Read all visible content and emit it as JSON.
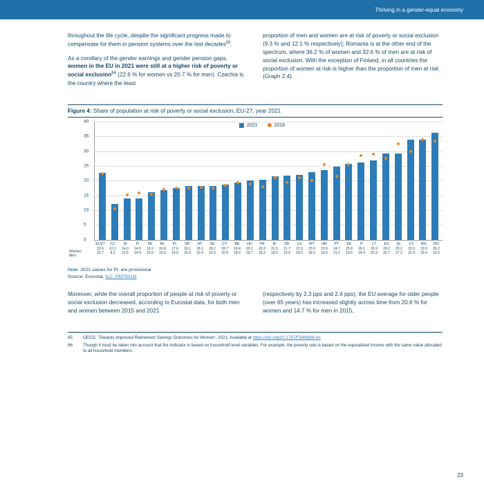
{
  "header": {
    "title": "Thriving in a gender-equal economy"
  },
  "text": {
    "p1": "throughout the life cycle, despite the significant progress made to compensate for them in pension systems over the last decades",
    "sup1": "65",
    "p1end": ".",
    "p2a": "As a corollary of the gender earnings and gender pension gaps, ",
    "p2b": "women in the EU in 2021 were still at a higher risk of poverty or social exclusion",
    "sup2": "66",
    "p2c": " (22.6 % for women vs 20.7 % for men). Czechia is the country where the least",
    "p3": "proportion of men and women are at risk of poverty or social exclusion (9.3 % and 12.1 % respectively); Romania is at the other end of the spectrum, where 36.2 % of women and 32.6 % of men are at risk of social exclusion. With the exception of Finland, in all countries the proportion of women at risk is higher than the proportion of men at risk (Graph 2.4).",
    "p4": "Moreover, while the overall proportion of people at risk of poverty or social exclusion decreased, according to Eurostat data, for both men and women between 2015 and 2021",
    "p5": "(respectively by 2.3 pps and 2.4 pps), the EU average for older people (over 65 years) has increased slightly across time from 20.6 % for women and 14.7 % for men in 2015,"
  },
  "figure": {
    "label": "Figure 4:",
    "caption": "Share of population at risk of poverty or social exclusion, EU-27, year 2021",
    "legend": {
      "a": "2021",
      "b": "2018"
    },
    "ylim": [
      0,
      40
    ],
    "yticks": [
      0,
      5,
      10,
      15,
      20,
      25,
      30,
      35,
      40
    ],
    "bar_color": "#2d7cb8",
    "dot_color": "#e58a2e",
    "row_headers": [
      "Women:",
      "Men:"
    ],
    "countries": [
      {
        "cc": "EU27",
        "w": "22.6",
        "m": "20.7",
        "bar": 22.6,
        "dot": 22.0
      },
      {
        "cc": "CZ",
        "w": "12.1",
        "m": "9.3",
        "bar": 12.1,
        "dot": 10.0
      },
      {
        "cc": "SI",
        "w": "14.0",
        "m": "12.5",
        "bar": 14.0,
        "dot": 14.8
      },
      {
        "cc": "FI",
        "w": "14.0",
        "m": "14.4",
        "bar": 14.0,
        "dot": 15.5
      },
      {
        "cc": "SK",
        "w": "16.2",
        "m": "15.0",
        "bar": 16.2,
        "dot": 15.0
      },
      {
        "cc": "NL",
        "w": "16.8",
        "m": "16.5",
        "bar": 16.8,
        "dot": 16.5
      },
      {
        "cc": "PL",
        "w": "17.6",
        "m": "16.0",
        "bar": 17.6,
        "dot": 17.0
      },
      {
        "cc": "DK",
        "w": "18.1",
        "m": "16.4",
        "bar": 18.1,
        "dot": 17.0
      },
      {
        "cc": "AT",
        "w": "18.1",
        "m": "16.4",
        "bar": 18.1,
        "dot": 17.2
      },
      {
        "cc": "SE",
        "w": "18.2",
        "m": "16.3",
        "bar": 18.2,
        "dot": 17.0
      },
      {
        "cc": "CY",
        "w": "18.7",
        "m": "15.8",
        "bar": 18.7,
        "dot": 18.0
      },
      {
        "cc": "BE",
        "w": "19.4",
        "m": "18.2",
        "bar": 19.4,
        "dot": 19.0
      },
      {
        "cc": "HU",
        "w": "20.1",
        "m": "18.7",
        "bar": 20.1,
        "dot": 18.5
      },
      {
        "cc": "FR",
        "w": "20.3",
        "m": "18.2",
        "bar": 20.3,
        "dot": 17.5
      },
      {
        "cc": "IE",
        "w": "21.5",
        "m": "18.0",
        "bar": 21.5,
        "dot": 20.5
      },
      {
        "cc": "DE",
        "w": "21.7",
        "m": "19.9",
        "bar": 21.7,
        "dot": 19.0
      },
      {
        "cc": "LU",
        "w": "21.9",
        "m": "20.5",
        "bar": 21.9,
        "dot": 20.5
      },
      {
        "cc": "MT",
        "w": "23.0",
        "m": "18.9",
        "bar": 23.0,
        "dot": 19.5
      },
      {
        "cc": "HR",
        "w": "23.5",
        "m": "18.6",
        "bar": 23.5,
        "dot": 25.0
      },
      {
        "cc": "PT",
        "w": "24.7",
        "m": "21.2",
        "bar": 24.7,
        "dot": 21.0
      },
      {
        "cc": "EE",
        "w": "25.8",
        "m": "19.6",
        "bar": 25.8,
        "dot": 25.0
      },
      {
        "cc": "IT",
        "w": "26.1",
        "m": "24.4",
        "bar": 26.1,
        "dot": 28.0
      },
      {
        "cc": "LT",
        "w": "26.9",
        "m": "20.3",
        "bar": 26.9,
        "dot": 28.5
      },
      {
        "cc": "ES",
        "w": "29.2",
        "m": "26.7",
        "bar": 29.2,
        "dot": 27.0
      },
      {
        "cc": "EL",
        "w": "29.2",
        "m": "27.3",
        "bar": 29.2,
        "dot": 32.0
      },
      {
        "cc": "LV",
        "w": "33.9",
        "m": "22.4",
        "bar": 33.9,
        "dot": 29.5
      },
      {
        "cc": "BG",
        "w": "33.9",
        "m": "29.4",
        "bar": 33.9,
        "dot": 33.5
      },
      {
        "cc": "RO",
        "w": "36.2",
        "m": "32.6",
        "bar": 36.2,
        "dot": 33.0
      }
    ]
  },
  "notes": {
    "n1": "Note: 2021 values for PL are provisional",
    "n2a": "Source: Eurostat, ",
    "n2b": "ILC_PEPS01N"
  },
  "footnotes": {
    "f1n": "65",
    "f1a": "OECD, 'Towards Improved Retirement Savings Outcomes for Women', 2021. Available at ",
    "f1b": "https://doi.org/10.1787/f7b48808-en",
    "f2n": "66",
    "f2": "Though it must be taken into account that the indicator is based on household level variables. For example, the poverty rate is based on the equivalised income with the same value allocated to all household members."
  },
  "page": "23"
}
